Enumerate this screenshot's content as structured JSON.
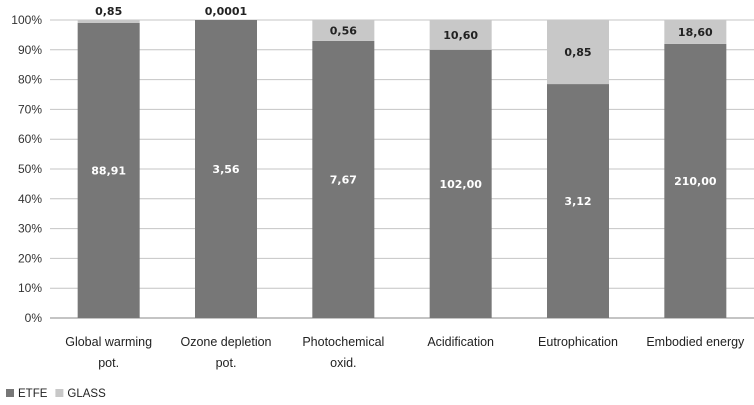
{
  "chart_data": {
    "type": "bar",
    "stacked": true,
    "normalized_percent": true,
    "categories": [
      [
        "Global warming",
        "pot."
      ],
      [
        "Ozone depletion",
        "pot."
      ],
      [
        "Photochemical",
        "oxid."
      ],
      [
        "Acidification"
      ],
      [
        "Eutrophication"
      ],
      [
        "Embodied energy"
      ]
    ],
    "series": [
      {
        "name": "ETFE",
        "color": "#777777",
        "percent": [
          99,
          100,
          93,
          90,
          78.5,
          92
        ],
        "labels": [
          "88,91",
          "3,56",
          "7,67",
          "102,00",
          "3,12",
          "210,00"
        ]
      },
      {
        "name": "GLASS",
        "color": "#c8c8c8",
        "percent": [
          1,
          0,
          7,
          10,
          21.5,
          8
        ],
        "labels": [
          "0,85",
          "0,0001",
          "0,56",
          "10,60",
          "0,85",
          "18,60"
        ]
      }
    ],
    "yticks": [
      "0%",
      "10%",
      "20%",
      "30%",
      "40%",
      "50%",
      "60%",
      "70%",
      "80%",
      "90%",
      "100%"
    ],
    "ylim": [
      0,
      100
    ],
    "grid": true,
    "legend_position": "bottom-left"
  }
}
